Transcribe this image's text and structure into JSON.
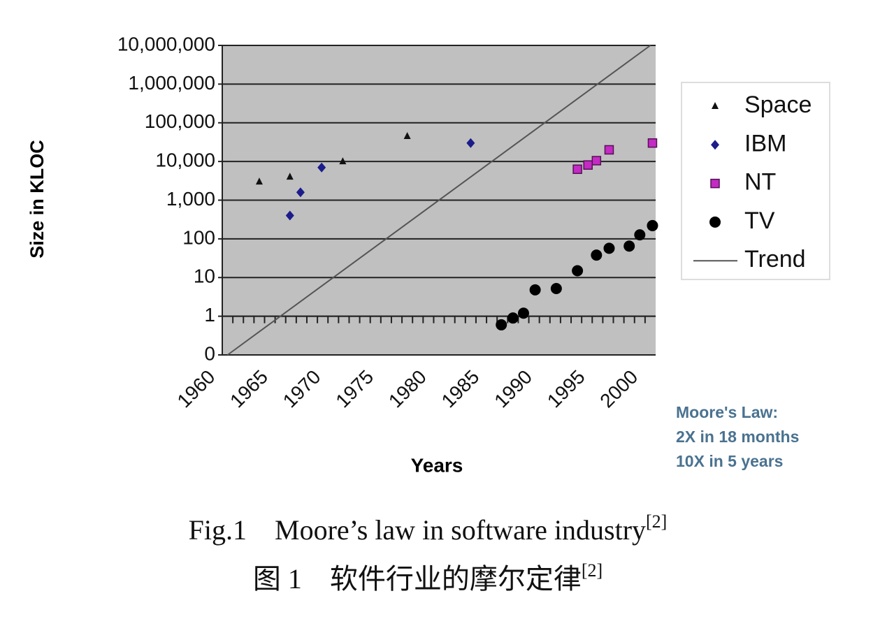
{
  "chart_data": {
    "type": "scatter",
    "ylabel": "Size in KLOC",
    "xlabel": "Years",
    "log_y": true,
    "grid": true,
    "background": "#c0c0c0",
    "legend": "right",
    "xaxis_crosses": 1,
    "xlim": [
      1960,
      2001
    ],
    "xticks": [
      1960,
      1965,
      1970,
      1975,
      1980,
      1985,
      1990,
      1995,
      2000
    ],
    "ylim": [
      0.1,
      10000000
    ],
    "yticks": [
      {
        "value": 0.1,
        "label": "0"
      },
      1,
      10,
      100,
      {
        "value": 1000,
        "label": "1,000"
      },
      {
        "value": 10000,
        "label": "10,000"
      },
      {
        "value": 100000,
        "label": "100,000"
      },
      {
        "value": 1000000,
        "label": "1,000,000"
      },
      {
        "value": 10000000,
        "label": "10,000,000"
      }
    ],
    "series": [
      {
        "name": "Space",
        "color": "#111111",
        "marker": "triangle",
        "x": [
          1963.5,
          1966.4,
          1971.4,
          1977.5
        ],
        "values": [
          3000,
          4000,
          10000,
          45000
        ]
      },
      {
        "name": "IBM",
        "color": "#1c1c8c",
        "marker": "diamond",
        "x": [
          1966.4,
          1967.4,
          1969.4,
          1983.5
        ],
        "values": [
          400,
          1600,
          7000,
          30000
        ]
      },
      {
        "name": "NT",
        "color": "#c42ac4",
        "marker": "square",
        "x": [
          1993.6,
          1994.6,
          1995.4,
          1996.6,
          2000.7
        ],
        "values": [
          6300,
          8100,
          10500,
          20000,
          30000
        ]
      },
      {
        "name": "TV",
        "color": "#000000",
        "marker": "circle",
        "x": [
          1986.4,
          1987.5,
          1988.5,
          1989.6,
          1991.6,
          1993.6,
          1995.4,
          1996.6,
          1998.5,
          1999.5,
          2000.7
        ],
        "values": [
          0.6,
          0.9,
          1.2,
          4.8,
          5.2,
          15,
          38,
          57,
          65,
          127,
          220
        ]
      },
      {
        "name": "Trend",
        "color": "#555555",
        "marker": "line",
        "x": [
          1960.5,
          2000.5
        ],
        "values": [
          0.1,
          10000000
        ]
      }
    ],
    "annotation": [
      "Moore's Law:",
      "2X in 18 months",
      "10X in 5 years"
    ],
    "caption_en": "Fig.1　Moore’s law in software industry",
    "caption_en_ref": "[2]",
    "caption_zh": "图 1　软件行业的摩尔定律",
    "caption_zh_ref": "[2]"
  }
}
